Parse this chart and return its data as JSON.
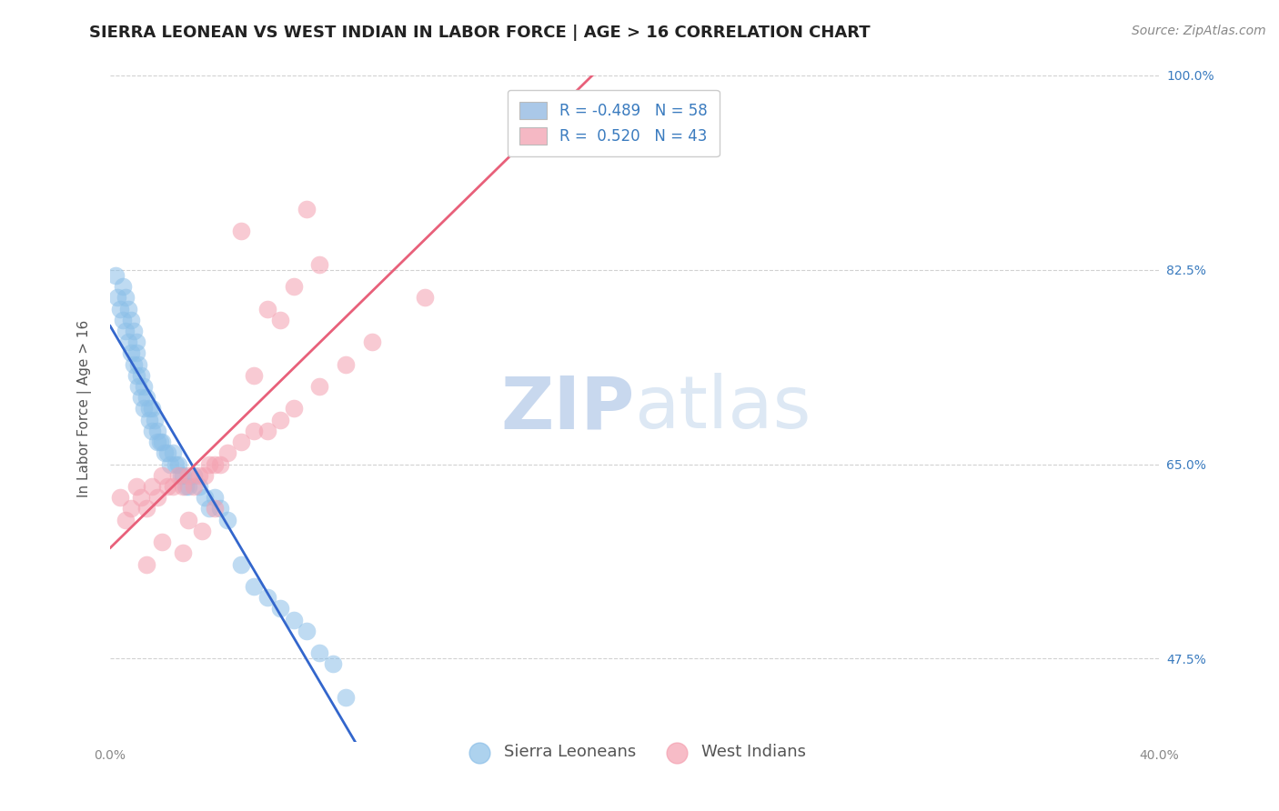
{
  "title": "SIERRA LEONEAN VS WEST INDIAN IN LABOR FORCE | AGE > 16 CORRELATION CHART",
  "source": "Source: ZipAtlas.com",
  "ylabel": "In Labor Force | Age > 16",
  "xmin": 0.0,
  "xmax": 0.4,
  "ymin": 0.4,
  "ymax": 1.0,
  "ytick_labels": [
    "100.0%",
    "82.5%",
    "65.0%",
    "47.5%"
  ],
  "ytick_values": [
    1.0,
    0.825,
    0.65,
    0.475
  ],
  "xtick_labels": [
    "0.0%",
    "40.0%"
  ],
  "xtick_values": [
    0.0,
    0.4
  ],
  "grid_color": "#cccccc",
  "background_color": "#ffffff",
  "sierra_color": "#8bbfe8",
  "west_color": "#f4a0b0",
  "sierra_line_color": "#3366cc",
  "west_line_color": "#e8607a",
  "regression_dash_color": "#b0c8e0",
  "sierra_x": [
    0.002,
    0.003,
    0.004,
    0.005,
    0.005,
    0.006,
    0.006,
    0.007,
    0.007,
    0.008,
    0.008,
    0.009,
    0.009,
    0.01,
    0.01,
    0.01,
    0.011,
    0.011,
    0.012,
    0.012,
    0.013,
    0.013,
    0.014,
    0.015,
    0.015,
    0.016,
    0.016,
    0.017,
    0.018,
    0.018,
    0.019,
    0.02,
    0.021,
    0.022,
    0.023,
    0.024,
    0.025,
    0.026,
    0.027,
    0.028,
    0.029,
    0.03,
    0.032,
    0.034,
    0.036,
    0.038,
    0.04,
    0.042,
    0.045,
    0.05,
    0.055,
    0.06,
    0.065,
    0.07,
    0.075,
    0.08,
    0.085,
    0.09
  ],
  "sierra_y": [
    0.82,
    0.8,
    0.79,
    0.81,
    0.78,
    0.8,
    0.77,
    0.79,
    0.76,
    0.78,
    0.75,
    0.77,
    0.74,
    0.76,
    0.73,
    0.75,
    0.74,
    0.72,
    0.73,
    0.71,
    0.72,
    0.7,
    0.71,
    0.7,
    0.69,
    0.7,
    0.68,
    0.69,
    0.68,
    0.67,
    0.67,
    0.67,
    0.66,
    0.66,
    0.65,
    0.66,
    0.65,
    0.65,
    0.64,
    0.64,
    0.63,
    0.63,
    0.64,
    0.63,
    0.62,
    0.61,
    0.62,
    0.61,
    0.6,
    0.56,
    0.54,
    0.53,
    0.52,
    0.51,
    0.5,
    0.48,
    0.47,
    0.44
  ],
  "west_x": [
    0.004,
    0.006,
    0.008,
    0.01,
    0.012,
    0.014,
    0.016,
    0.018,
    0.02,
    0.022,
    0.024,
    0.026,
    0.028,
    0.03,
    0.032,
    0.034,
    0.036,
    0.038,
    0.04,
    0.042,
    0.045,
    0.05,
    0.055,
    0.06,
    0.065,
    0.07,
    0.08,
    0.09,
    0.1,
    0.12,
    0.014,
    0.02,
    0.03,
    0.04,
    0.05,
    0.06,
    0.07,
    0.08,
    0.028,
    0.035,
    0.055,
    0.065,
    0.075
  ],
  "west_y": [
    0.62,
    0.6,
    0.61,
    0.63,
    0.62,
    0.61,
    0.63,
    0.62,
    0.64,
    0.63,
    0.63,
    0.64,
    0.63,
    0.64,
    0.63,
    0.64,
    0.64,
    0.65,
    0.65,
    0.65,
    0.66,
    0.67,
    0.68,
    0.68,
    0.69,
    0.7,
    0.72,
    0.74,
    0.76,
    0.8,
    0.56,
    0.58,
    0.6,
    0.61,
    0.86,
    0.79,
    0.81,
    0.83,
    0.57,
    0.59,
    0.73,
    0.78,
    0.88
  ],
  "legend_sierra_label": "R = -0.489   N = 58",
  "legend_west_label": "R =  0.520   N = 43",
  "legend_sierra_color": "#aac8e8",
  "legend_west_color": "#f5b8c4",
  "watermark_zip": "ZIP",
  "watermark_atlas": "atlas",
  "watermark_color": "#c8d8ee",
  "title_fontsize": 13,
  "axis_label_fontsize": 11,
  "tick_fontsize": 10,
  "legend_fontsize": 12,
  "source_fontsize": 10,
  "ylabel_color": "#555555",
  "tick_color": "#888888",
  "right_tick_color": "#3a7bbf"
}
